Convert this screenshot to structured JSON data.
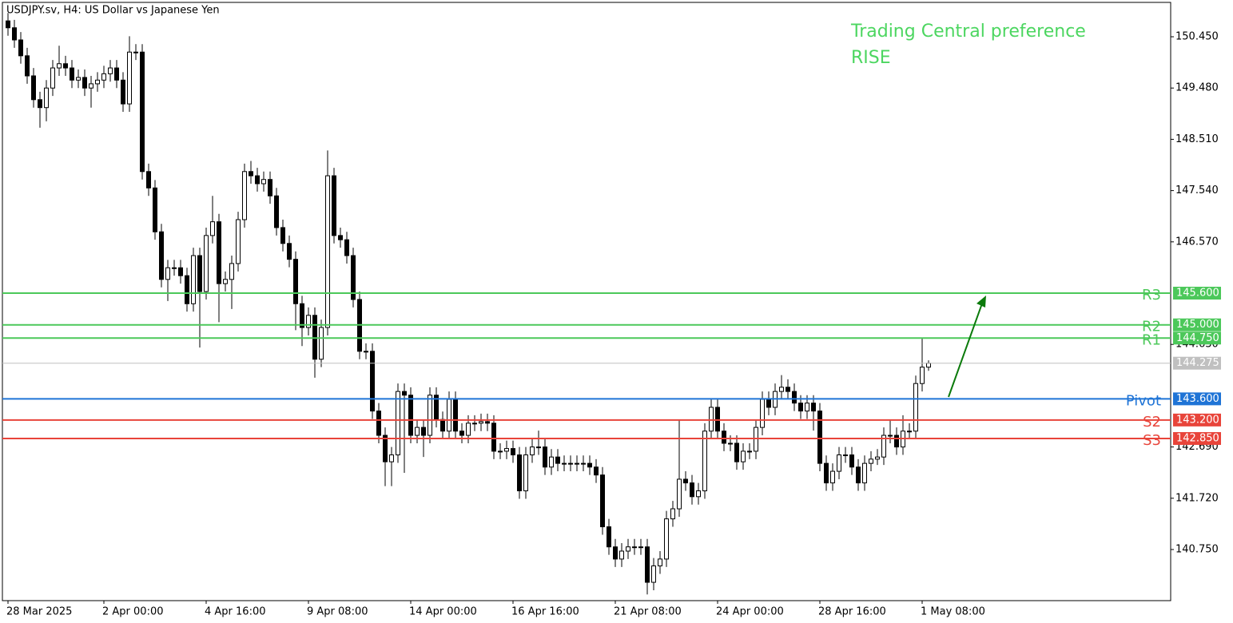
{
  "chart_data": {
    "type": "candlestick",
    "title": "USDJPY.sv, H4:  US Dollar vs Japanese Yen",
    "annotations": [
      "Trading Central preference",
      "RISE"
    ],
    "up_color": "#ffffff",
    "down_color": "#000000",
    "categories": [
      "28 Mar 2025",
      null,
      null,
      null,
      null,
      null,
      null,
      null,
      null,
      null,
      null,
      null,
      null,
      null,
      null,
      "2 Apr 00:00",
      null,
      null,
      null,
      null,
      null,
      null,
      null,
      null,
      null,
      null,
      null,
      null,
      null,
      null,
      null,
      "4 Apr 16:00",
      null,
      null,
      null,
      null,
      null,
      null,
      null,
      null,
      null,
      null,
      null,
      null,
      null,
      null,
      null,
      "9 Apr 08:00",
      null,
      null,
      null,
      null,
      null,
      null,
      null,
      null,
      null,
      null,
      null,
      null,
      null,
      null,
      null,
      "14 Apr 00:00",
      null,
      null,
      null,
      null,
      null,
      null,
      null,
      null,
      null,
      null,
      null,
      null,
      null,
      null,
      null,
      "16 Apr 16:00",
      null,
      null,
      null,
      null,
      null,
      null,
      null,
      null,
      null,
      null,
      null,
      null,
      null,
      null,
      null,
      "21 Apr 08:00",
      null,
      null,
      null,
      null,
      null,
      null,
      null,
      null,
      null,
      null,
      null,
      null,
      null,
      null,
      null,
      "24 Apr 00:00",
      null,
      null,
      null,
      null,
      null,
      null,
      null,
      null,
      null,
      null,
      null,
      null,
      null,
      null,
      null,
      "28 Apr 16:00",
      null,
      null,
      null,
      null,
      null,
      null,
      null,
      null,
      null,
      null,
      null,
      null,
      null,
      null,
      null,
      "1 May 08:00",
      null
    ],
    "open": [
      150.75,
      150.62,
      150.39,
      150.09,
      149.71,
      149.26,
      149.11,
      149.48,
      149.86,
      149.94,
      149.86,
      149.63,
      149.68,
      149.48,
      149.56,
      149.63,
      149.75,
      149.86,
      149.63,
      149.18,
      150.16,
      150.16,
      147.9,
      147.59,
      146.76,
      145.86,
      146.08,
      146.08,
      145.93,
      145.4,
      146.31,
      145.63,
      146.69,
      146.95,
      145.78,
      145.86,
      146.16,
      146.99,
      147.9,
      147.82,
      147.67,
      147.75,
      147.44,
      146.84,
      146.54,
      146.24,
      145.4,
      144.95,
      145.18,
      144.35,
      144.95,
      147.82,
      146.69,
      146.61,
      146.31,
      145.48,
      144.5,
      144.5,
      143.37,
      142.91,
      142.41,
      142.54,
      143.74,
      143.67,
      142.91,
      143.06,
      142.91,
      143.67,
      143.21,
      142.99,
      143.59,
      142.99,
      142.91,
      143.14,
      143.14,
      143.17,
      143.14,
      142.61,
      142.61,
      142.66,
      142.54,
      141.86,
      142.54,
      142.69,
      142.69,
      142.31,
      142.5,
      142.38,
      142.38,
      142.38,
      142.38,
      142.38,
      142.31,
      142.16,
      141.18,
      140.8,
      140.57,
      140.72,
      140.8,
      140.8,
      140.8,
      140.13,
      140.44,
      140.57,
      141.33,
      141.52,
      142.08,
      142.01,
      141.75,
      141.86,
      142.99,
      143.44,
      142.99,
      142.76,
      142.76,
      142.41,
      142.61,
      142.61,
      143.06,
      143.59,
      143.44,
      143.74,
      143.82,
      143.74,
      143.52,
      143.37,
      143.52,
      143.37,
      142.38,
      142.01,
      142.23,
      142.54,
      142.54,
      142.31,
      142.01,
      142.38,
      142.46,
      142.5,
      142.91,
      142.91,
      142.69,
      142.99,
      142.99,
      143.89,
      144.2
    ],
    "high": [
      150.9,
      150.77,
      150.54,
      150.24,
      149.86,
      149.41,
      149.63,
      150.01,
      150.28,
      150.09,
      150.01,
      149.83,
      149.83,
      149.71,
      149.78,
      149.9,
      150.01,
      150.01,
      149.78,
      150.46,
      150.31,
      150.31,
      148.05,
      147.74,
      146.91,
      146.23,
      146.23,
      146.23,
      146.08,
      146.46,
      146.46,
      146.84,
      147.44,
      147.1,
      146.01,
      146.31,
      147.14,
      148.05,
      148.1,
      147.97,
      147.9,
      147.9,
      147.59,
      146.99,
      146.69,
      146.39,
      145.55,
      145.33,
      145.33,
      145.1,
      148.3,
      147.97,
      146.84,
      146.76,
      146.46,
      145.63,
      144.65,
      144.65,
      143.52,
      143.06,
      142.69,
      143.89,
      143.89,
      143.82,
      143.21,
      143.21,
      143.82,
      143.82,
      143.36,
      143.74,
      143.74,
      143.14,
      143.29,
      143.29,
      143.32,
      143.32,
      143.29,
      142.76,
      142.81,
      142.81,
      142.69,
      142.69,
      142.84,
      143.0,
      142.84,
      142.65,
      142.65,
      142.53,
      142.53,
      142.53,
      142.53,
      142.53,
      142.46,
      142.31,
      141.33,
      140.95,
      140.87,
      140.95,
      140.95,
      140.95,
      140.95,
      140.59,
      140.72,
      141.48,
      141.67,
      143.21,
      142.23,
      142.16,
      142.01,
      143.14,
      143.59,
      143.59,
      143.14,
      142.91,
      142.91,
      142.76,
      142.76,
      143.21,
      143.74,
      143.74,
      143.89,
      144.05,
      143.97,
      143.89,
      143.67,
      143.67,
      143.67,
      143.52,
      142.53,
      142.38,
      142.69,
      142.69,
      142.69,
      142.46,
      142.53,
      142.61,
      142.65,
      143.06,
      143.21,
      143.06,
      143.29,
      143.14,
      144.04,
      144.75,
      144.33
    ],
    "low": [
      150.47,
      150.24,
      149.94,
      149.56,
      149.11,
      148.73,
      148.85,
      149.33,
      149.71,
      149.71,
      149.48,
      149.48,
      149.33,
      149.11,
      149.41,
      149.48,
      149.6,
      149.48,
      149.03,
      149.03,
      150.01,
      147.75,
      147.44,
      146.61,
      145.71,
      145.45,
      145.93,
      145.78,
      145.25,
      145.25,
      144.57,
      145.48,
      146.54,
      145.05,
      145.63,
      145.3,
      146.01,
      146.84,
      147.67,
      147.52,
      147.52,
      147.29,
      146.69,
      146.39,
      146.09,
      144.9,
      144.6,
      144.8,
      144.0,
      144.2,
      144.8,
      146.54,
      146.46,
      146.16,
      145.33,
      144.35,
      144.35,
      143.22,
      142.76,
      141.95,
      141.95,
      142.39,
      142.2,
      142.76,
      142.76,
      142.5,
      142.76,
      143.06,
      142.84,
      142.84,
      142.84,
      142.76,
      142.76,
      142.99,
      142.99,
      142.99,
      142.46,
      142.46,
      142.46,
      142.39,
      141.71,
      141.71,
      142.39,
      142.54,
      142.16,
      142.16,
      142.23,
      142.23,
      142.23,
      142.23,
      142.23,
      142.16,
      142.01,
      141.03,
      140.65,
      140.42,
      140.42,
      140.57,
      140.65,
      140.65,
      139.9,
      139.98,
      140.29,
      140.42,
      141.18,
      141.37,
      141.86,
      141.6,
      141.6,
      141.71,
      142.84,
      142.84,
      142.61,
      142.61,
      142.26,
      142.26,
      142.46,
      142.46,
      142.91,
      143.29,
      143.29,
      143.59,
      143.59,
      143.37,
      143.22,
      143.22,
      143.0,
      142.23,
      141.86,
      141.86,
      142.08,
      142.39,
      142.16,
      141.86,
      141.86,
      142.23,
      142.35,
      142.35,
      142.76,
      142.54,
      142.54,
      142.84,
      142.84,
      143.74,
      144.13
    ],
    "close": [
      150.62,
      150.39,
      150.09,
      149.71,
      149.26,
      149.11,
      149.48,
      149.86,
      149.94,
      149.86,
      149.63,
      149.68,
      149.48,
      149.56,
      149.63,
      149.75,
      149.86,
      149.63,
      149.18,
      150.16,
      150.16,
      147.9,
      147.59,
      146.76,
      145.86,
      146.08,
      146.08,
      145.93,
      145.4,
      146.31,
      145.63,
      146.69,
      146.95,
      145.78,
      145.86,
      146.16,
      146.99,
      147.9,
      147.82,
      147.67,
      147.75,
      147.44,
      146.84,
      146.54,
      146.24,
      145.4,
      144.95,
      145.18,
      144.35,
      144.95,
      147.82,
      146.69,
      146.61,
      146.31,
      145.48,
      144.5,
      144.5,
      143.37,
      142.91,
      142.41,
      142.54,
      143.74,
      143.67,
      142.91,
      143.06,
      142.91,
      143.67,
      143.21,
      142.99,
      143.59,
      142.99,
      142.91,
      143.14,
      143.14,
      143.17,
      143.14,
      142.61,
      142.61,
      142.66,
      142.54,
      141.86,
      142.54,
      142.69,
      142.69,
      142.31,
      142.5,
      142.38,
      142.38,
      142.38,
      142.38,
      142.38,
      142.31,
      142.16,
      141.18,
      140.8,
      140.57,
      140.72,
      140.8,
      140.8,
      140.8,
      140.13,
      140.44,
      140.57,
      141.33,
      141.52,
      142.08,
      142.01,
      141.75,
      141.86,
      142.99,
      143.44,
      142.99,
      142.76,
      142.76,
      142.41,
      142.61,
      142.61,
      143.06,
      143.59,
      143.44,
      143.74,
      143.82,
      143.74,
      143.52,
      143.37,
      143.52,
      143.37,
      142.38,
      142.01,
      142.23,
      142.54,
      142.54,
      142.31,
      142.01,
      142.38,
      142.46,
      142.5,
      142.91,
      142.91,
      142.69,
      142.99,
      142.99,
      143.89,
      144.2,
      144.275
    ],
    "levels": [
      {
        "name": "R3",
        "value": 145.6,
        "label": "145.600",
        "color": "#4cc85a"
      },
      {
        "name": "R2",
        "value": 145.0,
        "label": "145.000",
        "color": "#4cc85a"
      },
      {
        "name": "R1",
        "value": 144.75,
        "label": "144.750",
        "color": "#4cc85a"
      },
      {
        "name": "Pivot",
        "value": 143.6,
        "label": "143.600",
        "color": "#1f74d6"
      },
      {
        "name": "S2",
        "value": 143.2,
        "label": "143.200",
        "color": "#e8443a"
      },
      {
        "name": "S3",
        "value": 142.85,
        "label": "142.850",
        "color": "#e8443a"
      }
    ],
    "last_price": 144.275,
    "last_price_color": "#c0c0c0",
    "ylim": [
      139.783,
      151.1
    ],
    "yticks": [
      {
        "value": 140.75,
        "label": "140.750"
      },
      {
        "value": 141.72,
        "label": "141.720"
      },
      {
        "value": 142.69,
        "label": "142.690"
      },
      {
        "value": 144.63,
        "label": "144.630"
      },
      {
        "value": 146.57,
        "label": "146.570"
      },
      {
        "value": 147.54,
        "label": "147.540"
      },
      {
        "value": 148.51,
        "label": "148.510"
      },
      {
        "value": 149.48,
        "label": "149.480"
      },
      {
        "value": 150.45,
        "label": "150.450"
      }
    ],
    "grid": false
  }
}
